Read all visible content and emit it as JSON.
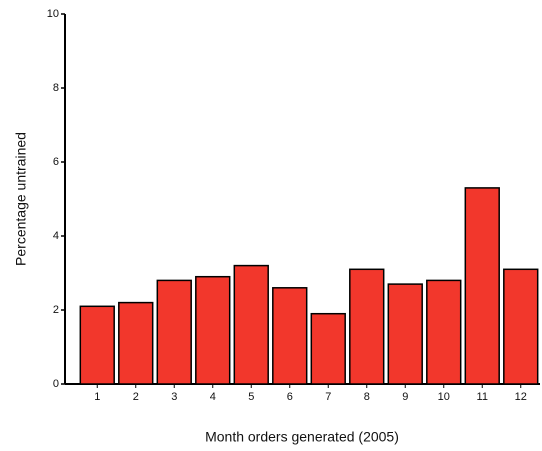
{
  "chart_data": {
    "type": "bar",
    "x_label": "Month orders generated (2005)",
    "y_label": "Percentage untrained",
    "categories": [
      "1",
      "2",
      "3",
      "4",
      "5",
      "6",
      "7",
      "8",
      "9",
      "10",
      "11",
      "12"
    ],
    "values": [
      2.1,
      2.2,
      2.8,
      2.9,
      3.2,
      2.6,
      1.9,
      3.1,
      2.7,
      2.8,
      5.3,
      3.1
    ],
    "color": "#f2372c",
    "ylim": [
      0,
      10
    ],
    "yticks": [
      0,
      2,
      4,
      6,
      8,
      10
    ]
  }
}
